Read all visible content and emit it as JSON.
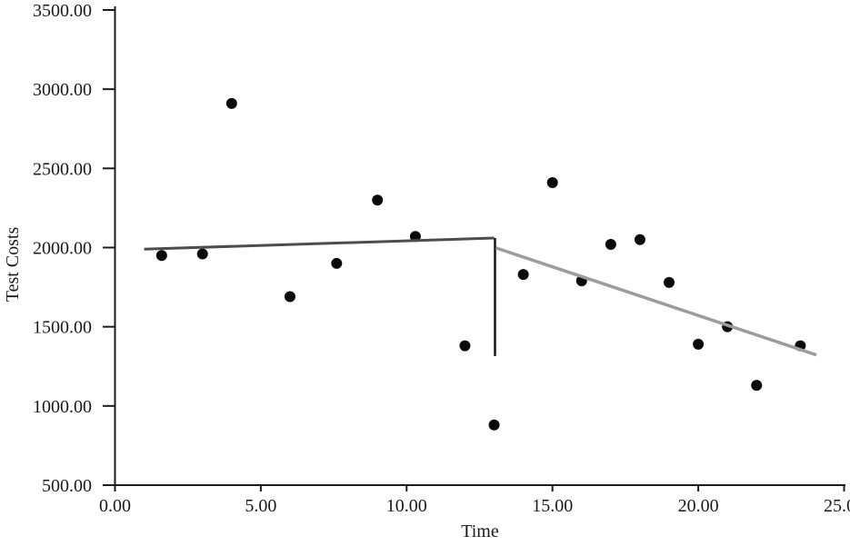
{
  "figure": {
    "background": "#ffffff"
  },
  "chart_data": {
    "type": "scatter",
    "title": "",
    "xlabel": "Time",
    "ylabel": "Test Costs",
    "xlim": [
      0,
      25.1
    ],
    "ylim": [
      500,
      3500
    ],
    "grid": false,
    "legend": "none",
    "x_ticks": [
      0,
      5,
      10,
      15,
      20,
      25
    ],
    "x_tick_labels": [
      "0.00",
      "5.00",
      "10.00",
      "15.00",
      "20.00",
      "25.00"
    ],
    "y_ticks": [
      500,
      1000,
      1500,
      2000,
      2500,
      3000,
      3500
    ],
    "y_tick_labels": [
      "500.00",
      "1000.00",
      "1500.00",
      "2000.00",
      "2500.00",
      "3000.00",
      "3500.00"
    ],
    "points": [
      {
        "x": 1.6,
        "y": 1950
      },
      {
        "x": 3.0,
        "y": 1960
      },
      {
        "x": 4.0,
        "y": 2910
      },
      {
        "x": 6.0,
        "y": 1690
      },
      {
        "x": 7.6,
        "y": 1900
      },
      {
        "x": 9.0,
        "y": 2300
      },
      {
        "x": 10.3,
        "y": 2070
      },
      {
        "x": 12.0,
        "y": 1380
      },
      {
        "x": 13.0,
        "y": 880
      },
      {
        "x": 14.0,
        "y": 1830
      },
      {
        "x": 15.0,
        "y": 2410
      },
      {
        "x": 16.0,
        "y": 1790
      },
      {
        "x": 17.0,
        "y": 2020
      },
      {
        "x": 18.0,
        "y": 2050
      },
      {
        "x": 19.0,
        "y": 1780
      },
      {
        "x": 20.0,
        "y": 1390
      },
      {
        "x": 21.0,
        "y": 1500
      },
      {
        "x": 22.0,
        "y": 1130
      },
      {
        "x": 23.5,
        "y": 1380
      }
    ],
    "trend_segments": {
      "pre_intervention": {
        "x1": 1.0,
        "y1": 1990,
        "x2": 13.0,
        "y2": 2060,
        "color": "#4d4d4d",
        "width": 3
      },
      "level_drop": {
        "x": 13.03,
        "y1": 2060,
        "y2": 1315,
        "color": "#141414",
        "width": 2.5
      },
      "post_intervention": {
        "x1": 13.06,
        "y1": 1998,
        "x2": 24.05,
        "y2": 1322,
        "color": "#9c9c9c",
        "width": 3.5
      }
    },
    "point_style": {
      "color": "#0a0a0a",
      "radius": 6
    },
    "axis_color": "#1c1c1c"
  }
}
